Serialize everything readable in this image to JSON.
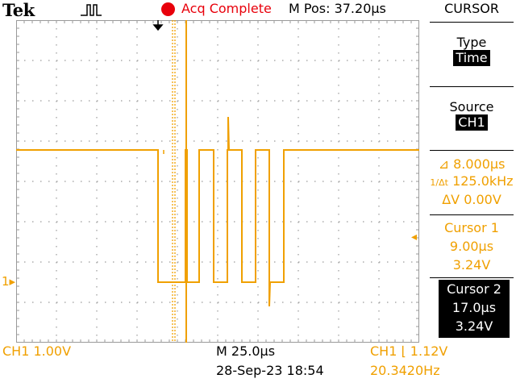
{
  "header": {
    "brand": "Tek",
    "trigger_state_icon": "pulse-icon",
    "acq_status": "Acq Complete",
    "acq_status_color": "#e8000b",
    "m_pos": "M Pos: 37.20µs"
  },
  "side_menu": {
    "title": "CURSOR",
    "type_label": "Type",
    "type_value": "Time",
    "source_label": "Source",
    "source_value": "CH1",
    "delta_t": "8.000µs",
    "delta_f": "125.0kHz",
    "delta_v": "ΔV 0.00V",
    "cursor1": {
      "label": "Cursor 1",
      "time": "9.00µs",
      "volt": "3.24V"
    },
    "cursor2": {
      "label": "Cursor 2",
      "time": "17.0µs",
      "volt": "3.24V"
    }
  },
  "footer": {
    "ch1_scale": "CH1  1.00V",
    "timebase": "M 25.0µs",
    "datetime": "28-Sep-23 18:54",
    "trigger_level": "CH1 ⌊ 1.12V",
    "trigger_freq": "20.3420Hz"
  },
  "markers": {
    "ch1_ground": "1▸",
    "trigger_arrow": "◂"
  },
  "colors": {
    "trace": "#f0a000",
    "grid": "#9a9a9a",
    "frame": "#9a9a9a"
  }
}
